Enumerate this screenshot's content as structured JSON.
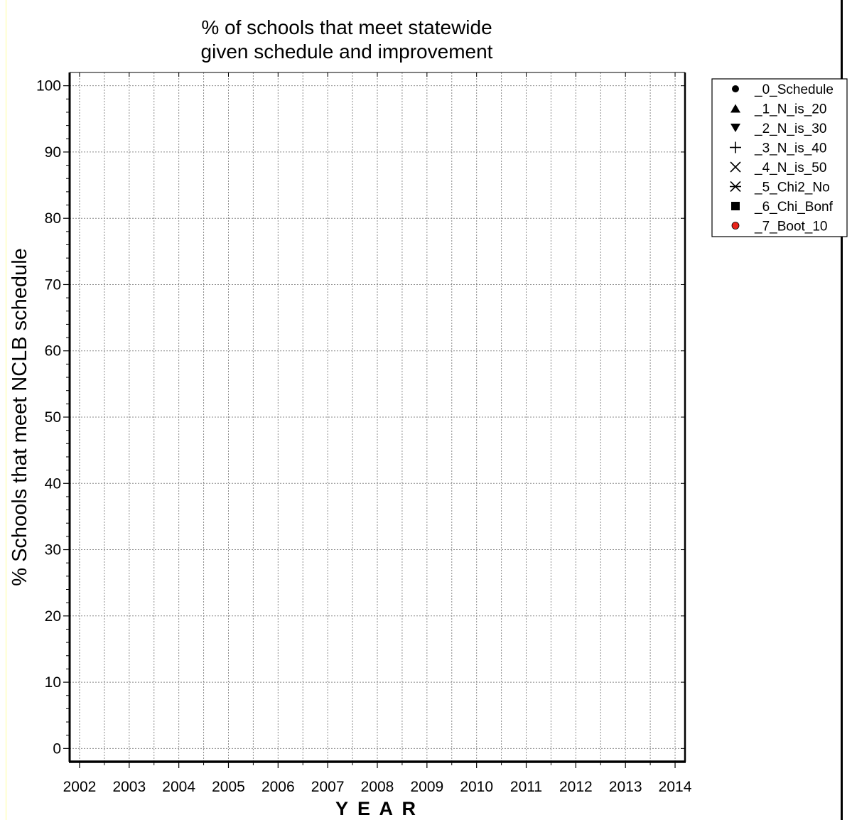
{
  "chart_data": {
    "type": "scatter",
    "title_lines": [
      "% of schools that meet statewide",
      "given schedule and improvement"
    ],
    "xlabel": "Y E A R",
    "ylabel": "% Schools that meet NCLB schedule",
    "x_ticks": [
      2002,
      2003,
      2004,
      2005,
      2006,
      2007,
      2008,
      2009,
      2010,
      2011,
      2012,
      2013,
      2014
    ],
    "y_ticks": [
      0,
      10,
      20,
      30,
      40,
      50,
      60,
      70,
      80,
      90,
      100
    ],
    "xlim": [
      2001.8,
      2014.2
    ],
    "ylim": [
      -2,
      102
    ],
    "grid": true,
    "legend_position": "top-right",
    "series": [
      {
        "name": "_0_Schedule",
        "marker": "circle",
        "color": "#000000",
        "values": []
      },
      {
        "name": "_1_N_is_20",
        "marker": "triangle-up",
        "color": "#000000",
        "values": []
      },
      {
        "name": "_2_N_is_30",
        "marker": "triangle-down",
        "color": "#000000",
        "values": []
      },
      {
        "name": "_3_N_is_40",
        "marker": "plus",
        "color": "#000000",
        "values": []
      },
      {
        "name": "_4_N_is_50",
        "marker": "x",
        "color": "#000000",
        "values": []
      },
      {
        "name": "_5_Chi2_No",
        "marker": "asterisk",
        "color": "#000000",
        "values": []
      },
      {
        "name": "_6_Chi_Bonf",
        "marker": "square",
        "color": "#000000",
        "values": []
      },
      {
        "name": "_7_Boot_10",
        "marker": "circle",
        "color": "#e8231a",
        "values": []
      }
    ]
  }
}
